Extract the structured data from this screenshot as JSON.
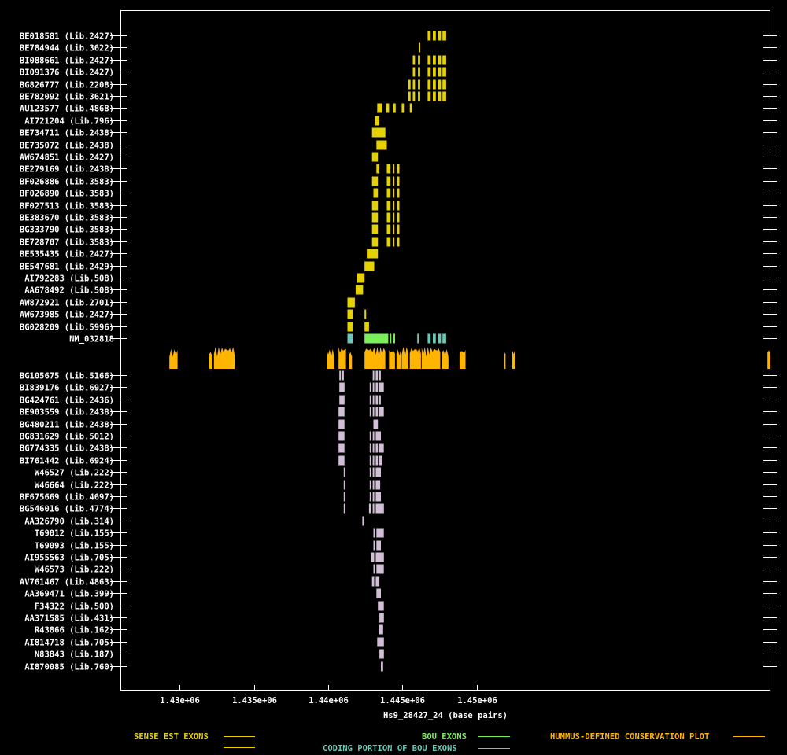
{
  "chart_data": {
    "type": "gene-track",
    "xlabel": "Hs9_28427_24 (base pairs)",
    "xlim": [
      1426000,
      1469800
    ],
    "xticks": [
      {
        "value": 1430000,
        "label": "1.43e+06"
      },
      {
        "value": 1435000,
        "label": "1.435e+06"
      },
      {
        "value": 1440000,
        "label": "1.44e+06"
      },
      {
        "value": 1445000,
        "label": "1.445e+06"
      },
      {
        "value": 1450000,
        "label": "1.45e+06"
      }
    ],
    "colors": {
      "sense": "#e6d200",
      "bou": "#79f05a",
      "coding": "#6ac8b4",
      "conservation": "#ffb400",
      "antisense": "#d2bed7"
    },
    "sense_tracks": [
      {
        "label": "BE018581 (Lib.2427)",
        "exons": [
          [
            1446700,
            1446900
          ],
          [
            1447050,
            1447250
          ],
          [
            1447400,
            1447600
          ],
          [
            1447700,
            1447950
          ]
        ]
      },
      {
        "label": "BE784944 (Lib.3622)",
        "exons": [
          [
            1446100,
            1446200
          ]
        ]
      },
      {
        "label": "BI088661 (Lib.2427)",
        "exons": [
          [
            1445700,
            1445850
          ],
          [
            1446050,
            1446200
          ],
          [
            1446700,
            1446900
          ],
          [
            1447050,
            1447250
          ],
          [
            1447400,
            1447600
          ],
          [
            1447700,
            1447950
          ]
        ]
      },
      {
        "label": "BI091376 (Lib.2427)",
        "exons": [
          [
            1445700,
            1445850
          ],
          [
            1446050,
            1446200
          ],
          [
            1446700,
            1446900
          ],
          [
            1447050,
            1447250
          ],
          [
            1447400,
            1447600
          ],
          [
            1447700,
            1447950
          ]
        ]
      },
      {
        "label": "BG826777 (Lib.2208)",
        "exons": [
          [
            1445400,
            1445550
          ],
          [
            1445700,
            1445850
          ],
          [
            1446050,
            1446200
          ],
          [
            1446700,
            1446900
          ],
          [
            1447050,
            1447250
          ],
          [
            1447400,
            1447600
          ],
          [
            1447700,
            1447950
          ]
        ]
      },
      {
        "label": "BE782092 (Lib.3621)",
        "exons": [
          [
            1445400,
            1445550
          ],
          [
            1445700,
            1445850
          ],
          [
            1446050,
            1446200
          ],
          [
            1446700,
            1446900
          ],
          [
            1447050,
            1447250
          ],
          [
            1447400,
            1447600
          ],
          [
            1447700,
            1447950
          ]
        ]
      },
      {
        "label": "AU123577 (Lib.4868)",
        "exons": [
          [
            1443300,
            1443650
          ],
          [
            1443900,
            1444100
          ],
          [
            1444400,
            1444550
          ],
          [
            1444950,
            1445100
          ],
          [
            1445500,
            1445650
          ]
        ]
      },
      {
        "label": "AI721204 (Lib.796)",
        "exons": [
          [
            1443150,
            1443450
          ]
        ]
      },
      {
        "label": "BE734711 (Lib.2438)",
        "exons": [
          [
            1442950,
            1443850
          ]
        ]
      },
      {
        "label": "BE735072 (Lib.2438)",
        "exons": [
          [
            1443250,
            1443950
          ]
        ]
      },
      {
        "label": "AW674851 (Lib.2427)",
        "exons": [
          [
            1442950,
            1443350
          ]
        ]
      },
      {
        "label": "BE279169 (Lib.2438)",
        "exons": [
          [
            1443250,
            1443450
          ],
          [
            1443950,
            1444200
          ],
          [
            1444350,
            1444450
          ],
          [
            1444650,
            1444800
          ]
        ]
      },
      {
        "label": "BF026886 (Lib.3583)",
        "exons": [
          [
            1442950,
            1443350
          ],
          [
            1443950,
            1444200
          ],
          [
            1444350,
            1444450
          ],
          [
            1444650,
            1444800
          ]
        ]
      },
      {
        "label": "BF026890 (Lib.3583)",
        "exons": [
          [
            1443050,
            1443350
          ],
          [
            1443950,
            1444200
          ],
          [
            1444350,
            1444450
          ],
          [
            1444650,
            1444800
          ]
        ]
      },
      {
        "label": "BF027513 (Lib.3583)",
        "exons": [
          [
            1442950,
            1443350
          ],
          [
            1443950,
            1444200
          ],
          [
            1444350,
            1444450
          ],
          [
            1444650,
            1444800
          ]
        ]
      },
      {
        "label": "BE383670 (Lib.3583)",
        "exons": [
          [
            1442950,
            1443350
          ],
          [
            1443950,
            1444200
          ],
          [
            1444350,
            1444450
          ],
          [
            1444650,
            1444800
          ]
        ]
      },
      {
        "label": "BG333790 (Lib.3583)",
        "exons": [
          [
            1442950,
            1443350
          ],
          [
            1443950,
            1444200
          ],
          [
            1444350,
            1444450
          ],
          [
            1444650,
            1444800
          ]
        ]
      },
      {
        "label": "BE728707 (Lib.3583)",
        "exons": [
          [
            1442950,
            1443350
          ],
          [
            1443950,
            1444200
          ],
          [
            1444350,
            1444450
          ],
          [
            1444650,
            1444800
          ]
        ]
      },
      {
        "label": "BE535435 (Lib.2427)",
        "exons": [
          [
            1442600,
            1443350
          ]
        ]
      },
      {
        "label": "BE547681 (Lib.2429)",
        "exons": [
          [
            1442450,
            1443100
          ]
        ]
      },
      {
        "label": "AI792283 (Lib.508)",
        "exons": [
          [
            1441950,
            1442450
          ]
        ]
      },
      {
        "label": "AA678492 (Lib.508)",
        "exons": [
          [
            1441850,
            1442350
          ]
        ]
      },
      {
        "label": "AW872921 (Lib.2701)",
        "exons": [
          [
            1441300,
            1441800
          ]
        ]
      },
      {
        "label": "AW673985 (Lib.2427)",
        "exons": [
          [
            1441300,
            1441650
          ],
          [
            1442450,
            1442550
          ]
        ]
      },
      {
        "label": "BG028209 (Lib.5996)",
        "exons": [
          [
            1441300,
            1441650
          ],
          [
            1442450,
            1442750
          ]
        ]
      }
    ],
    "bou_track": {
      "label": "NM_032818",
      "exons": [
        {
          "span": [
            1441300,
            1441650
          ],
          "kind": "coding"
        },
        {
          "span": [
            1442450,
            1444050
          ],
          "kind": "bou"
        },
        {
          "span": [
            1444150,
            1444250
          ],
          "kind": "bou"
        },
        {
          "span": [
            1444400,
            1444500
          ],
          "kind": "bou"
        },
        {
          "span": [
            1446000,
            1446100
          ],
          "kind": "coding"
        },
        {
          "span": [
            1446700,
            1446900
          ],
          "kind": "coding"
        },
        {
          "span": [
            1447050,
            1447250
          ],
          "kind": "coding"
        },
        {
          "span": [
            1447400,
            1447600
          ],
          "kind": "coding"
        },
        {
          "span": [
            1447700,
            1447950
          ],
          "kind": "coding"
        }
      ]
    },
    "conservation": [
      [
        1429300,
        1429850,
        0.9
      ],
      [
        1431950,
        1432200,
        0.8
      ],
      [
        1432300,
        1433700,
        1.0
      ],
      [
        1439900,
        1440400,
        0.9
      ],
      [
        1440700,
        1441200,
        1.0
      ],
      [
        1441400,
        1441600,
        0.8
      ],
      [
        1442450,
        1443850,
        1.0
      ],
      [
        1444100,
        1444500,
        0.9
      ],
      [
        1444600,
        1444900,
        0.9
      ],
      [
        1444950,
        1445400,
        1.0
      ],
      [
        1445500,
        1446250,
        1.0
      ],
      [
        1446300,
        1447550,
        1.0
      ],
      [
        1447650,
        1448100,
        0.9
      ],
      [
        1448850,
        1449250,
        0.9
      ],
      [
        1451850,
        1451950,
        0.8
      ],
      [
        1452400,
        1452600,
        0.9
      ],
      [
        1469600,
        1469800,
        0.9
      ]
    ],
    "antisense_tracks": [
      {
        "label": "BG105675 (Lib.5166)",
        "exons": [
          [
            1440750,
            1440850
          ],
          [
            1440950,
            1441050
          ],
          [
            1443000,
            1443100
          ],
          [
            1443200,
            1443350
          ],
          [
            1443400,
            1443550
          ]
        ]
      },
      {
        "label": "BI839176 (Lib.6927)",
        "exons": [
          [
            1440750,
            1441100
          ],
          [
            1442800,
            1442900
          ],
          [
            1443000,
            1443100
          ],
          [
            1443200,
            1443350
          ],
          [
            1443400,
            1443750
          ]
        ]
      },
      {
        "label": "BG424761 (Lib.2436)",
        "exons": [
          [
            1440750,
            1441100
          ],
          [
            1442800,
            1442900
          ],
          [
            1443000,
            1443100
          ],
          [
            1443200,
            1443350
          ],
          [
            1443400,
            1443550
          ]
        ]
      },
      {
        "label": "BE903559 (Lib.2438)",
        "exons": [
          [
            1440700,
            1441100
          ],
          [
            1442800,
            1442900
          ],
          [
            1443000,
            1443100
          ],
          [
            1443200,
            1443350
          ],
          [
            1443400,
            1443750
          ]
        ]
      },
      {
        "label": "BG480211 (Lib.2438)",
        "exons": [
          [
            1440700,
            1441100
          ],
          [
            1443050,
            1443350
          ]
        ]
      },
      {
        "label": "BG831629 (Lib.5012)",
        "exons": [
          [
            1440700,
            1441100
          ],
          [
            1442800,
            1442900
          ],
          [
            1443000,
            1443100
          ],
          [
            1443200,
            1443550
          ]
        ]
      },
      {
        "label": "BG774335 (Lib.2438)",
        "exons": [
          [
            1440700,
            1441100
          ],
          [
            1442800,
            1442900
          ],
          [
            1443000,
            1443100
          ],
          [
            1443200,
            1443350
          ],
          [
            1443400,
            1443750
          ]
        ]
      },
      {
        "label": "BI761442 (Lib.6924)",
        "exons": [
          [
            1440700,
            1441100
          ],
          [
            1442800,
            1442900
          ],
          [
            1443000,
            1443100
          ],
          [
            1443200,
            1443350
          ],
          [
            1443400,
            1443650
          ]
        ]
      },
      {
        "label": "W46527 (Lib.222)",
        "exons": [
          [
            1441050,
            1441150
          ],
          [
            1442800,
            1442900
          ],
          [
            1443000,
            1443100
          ],
          [
            1443200,
            1443550
          ]
        ]
      },
      {
        "label": "W46664 (Lib.222)",
        "exons": [
          [
            1441050,
            1441150
          ],
          [
            1442800,
            1442900
          ],
          [
            1443000,
            1443100
          ],
          [
            1443200,
            1443500
          ]
        ]
      },
      {
        "label": "BF675669 (Lib.4697)",
        "exons": [
          [
            1441050,
            1441150
          ],
          [
            1442800,
            1442900
          ],
          [
            1443000,
            1443100
          ],
          [
            1443200,
            1443550
          ]
        ]
      },
      {
        "label": "BG546016 (Lib.4774)",
        "exons": [
          [
            1441050,
            1441150
          ],
          [
            1442750,
            1442900
          ],
          [
            1443000,
            1443100
          ],
          [
            1443200,
            1443750
          ]
        ]
      },
      {
        "label": "AA326790 (Lib.314)",
        "exons": [
          [
            1442300,
            1442400
          ]
        ]
      },
      {
        "label": "T69012 (Lib.155)",
        "exons": [
          [
            1443050,
            1443150
          ],
          [
            1443250,
            1443750
          ]
        ]
      },
      {
        "label": "T69093 (Lib.155)",
        "exons": [
          [
            1443050,
            1443150
          ],
          [
            1443250,
            1443550
          ]
        ]
      },
      {
        "label": "AI955563 (Lib.705)",
        "exons": [
          [
            1442900,
            1443100
          ],
          [
            1443200,
            1443750
          ]
        ]
      },
      {
        "label": "W46573 (Lib.222)",
        "exons": [
          [
            1443050,
            1443150
          ],
          [
            1443250,
            1443750
          ]
        ]
      },
      {
        "label": "AV761467 (Lib.4863)",
        "exons": [
          [
            1442950,
            1443100
          ],
          [
            1443200,
            1443450
          ]
        ]
      },
      {
        "label": "AA369471 (Lib.399)",
        "exons": [
          [
            1443250,
            1443550
          ]
        ]
      },
      {
        "label": "F34322 (Lib.500)",
        "exons": [
          [
            1443350,
            1443750
          ]
        ]
      },
      {
        "label": "AA371585 (Lib.431)",
        "exons": [
          [
            1443450,
            1443750
          ]
        ]
      },
      {
        "label": "R43866 (Lib.162)",
        "exons": [
          [
            1443400,
            1443700
          ]
        ]
      },
      {
        "label": "AI814718 (Lib.705)",
        "exons": [
          [
            1443300,
            1443750
          ]
        ]
      },
      {
        "label": "N83843 (Lib.187)",
        "exons": [
          [
            1443450,
            1443750
          ]
        ]
      },
      {
        "label": "AI870085 (Lib.760)",
        "exons": [
          [
            1443550,
            1443700
          ]
        ]
      }
    ]
  },
  "legend": {
    "sense": "SENSE EST EXONS",
    "bou": "BOU EXONS",
    "coding": "CODING PORTION OF BOU EXONS",
    "conservation": "HUMMUS-DEFINED CONSERVATION PLOT"
  }
}
